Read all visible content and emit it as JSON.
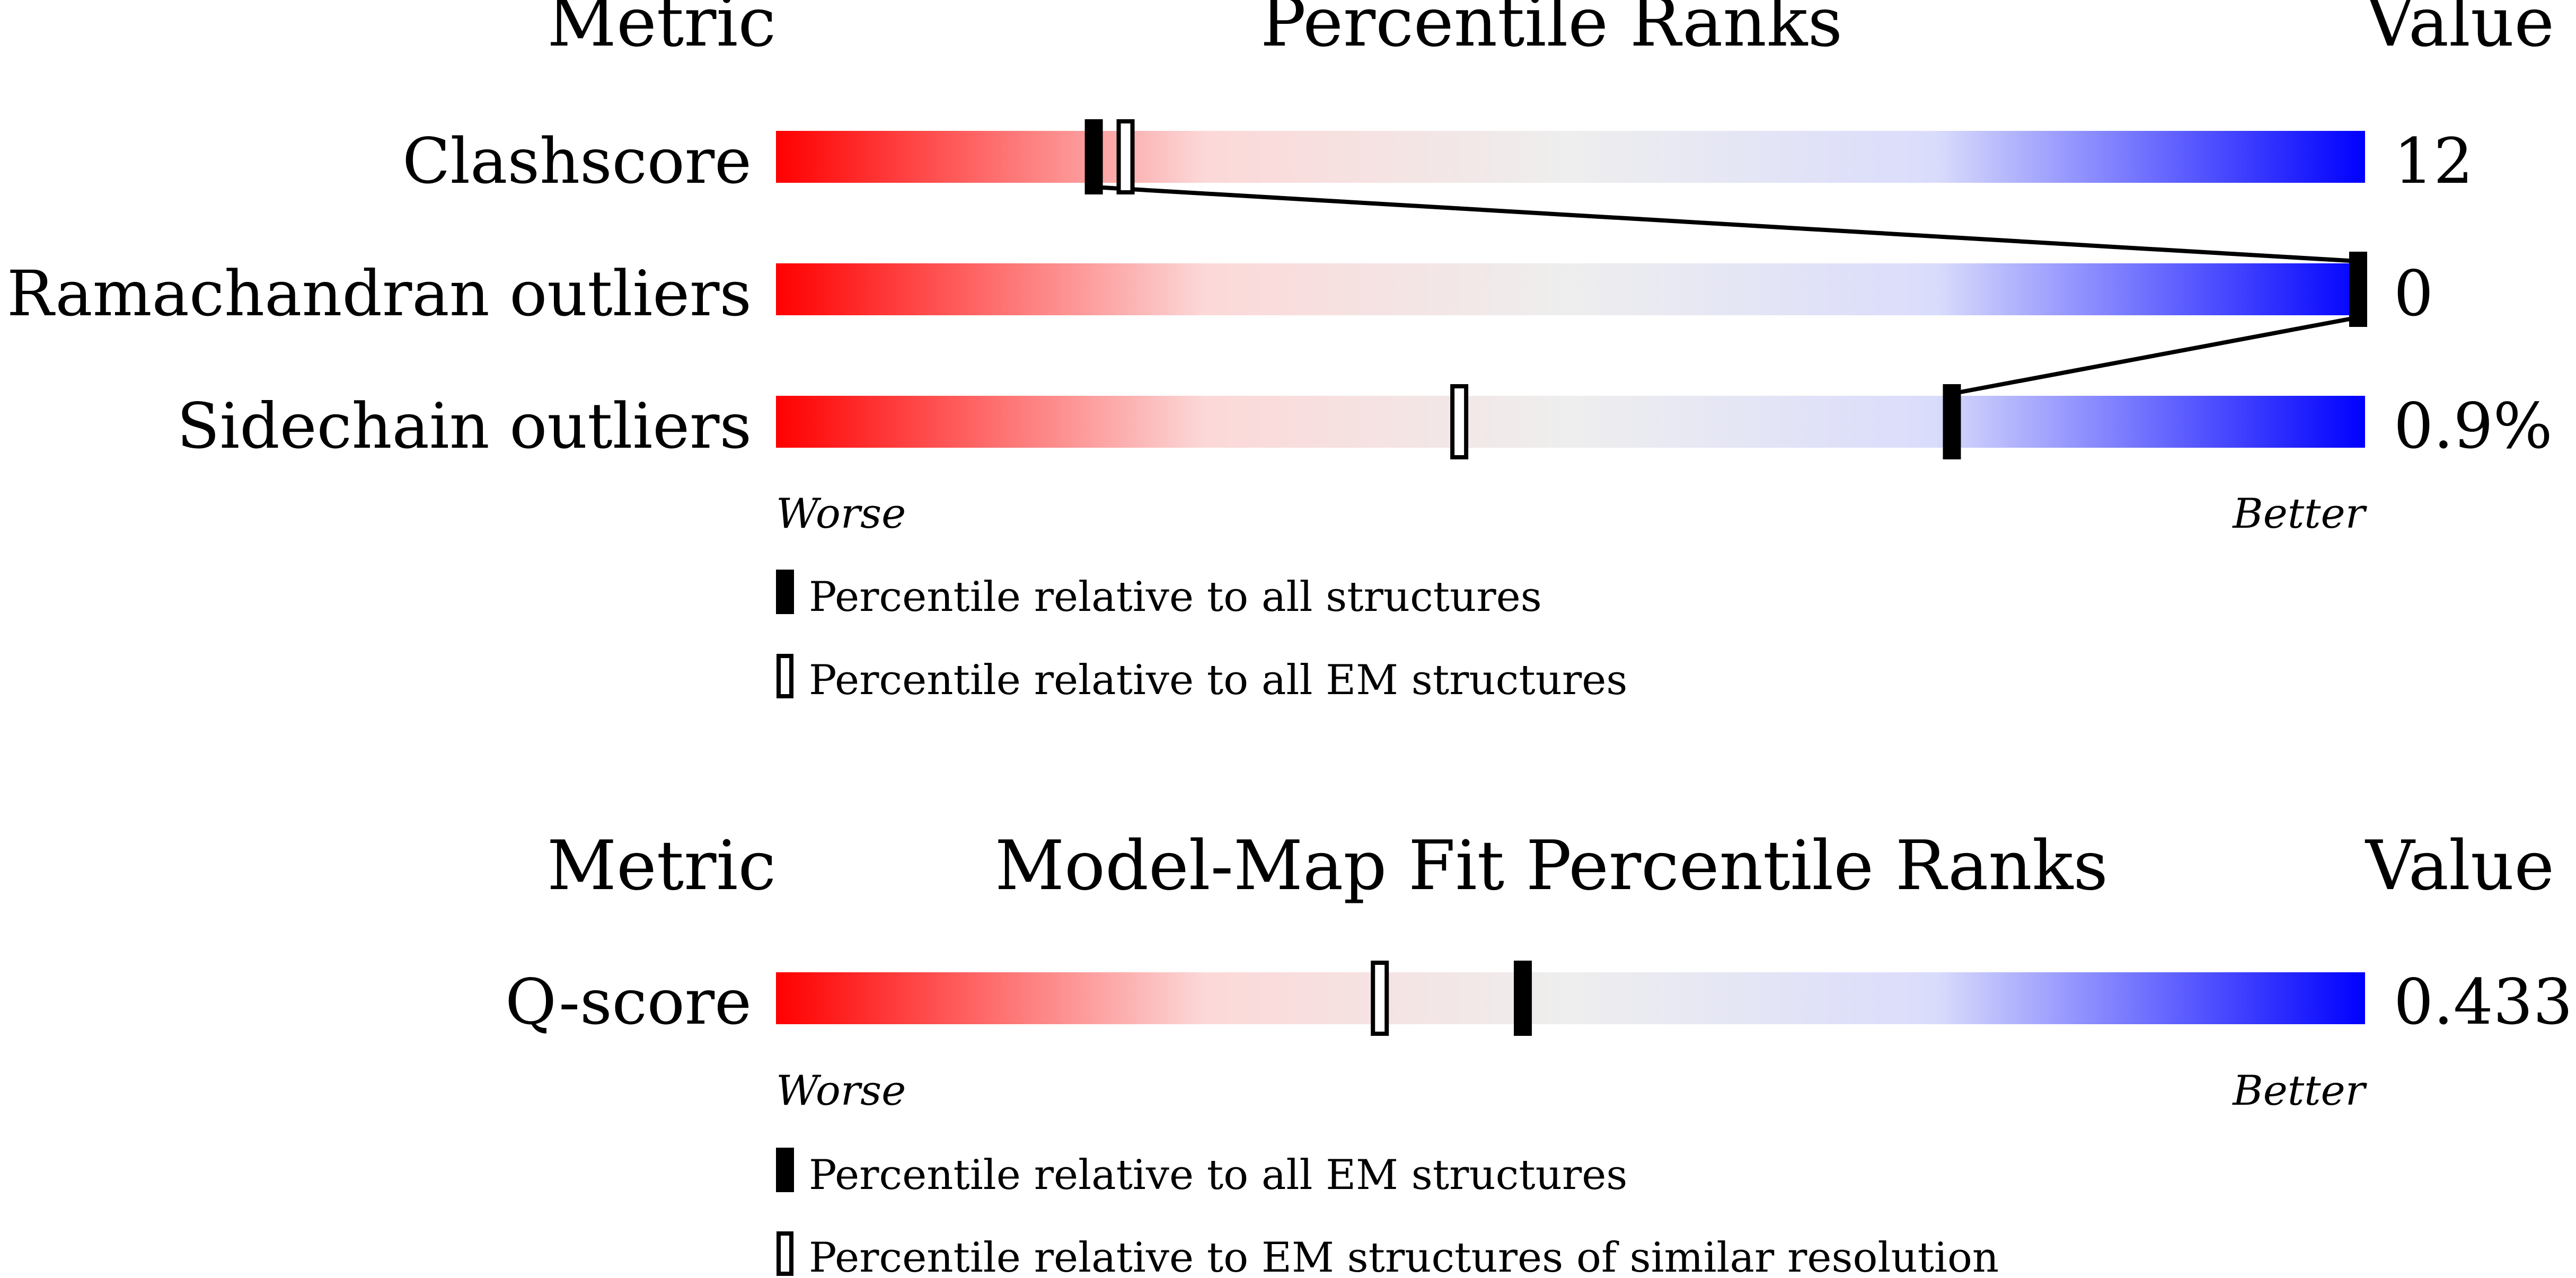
{
  "colors": {
    "worse": "#ff0000",
    "mid": "#eeeeee",
    "light_red": "#fcd8d8",
    "light_blue": "#dadcfc",
    "better": "#0000ff",
    "marker": "#000000"
  },
  "chart_data": [
    {
      "type": "percentile-ranks",
      "title": "Percentile Ranks",
      "col_metric": "Metric",
      "col_value": "Value",
      "axis_left": "Worse",
      "axis_right": "Better",
      "x_range": [
        0,
        100
      ],
      "metrics": [
        {
          "name": "Clashscore",
          "value": "12",
          "percentile_all": 20,
          "percentile_em": 22
        },
        {
          "name": "Ramachandran outliers",
          "value": "0",
          "percentile_all": 100,
          "percentile_em": 100
        },
        {
          "name": "Sidechain outliers",
          "value": "0.9%",
          "percentile_all": 74,
          "percentile_em": 43
        }
      ],
      "legend": [
        {
          "marker": "filled",
          "label": "Percentile relative to all structures"
        },
        {
          "marker": "hollow",
          "label": "Percentile relative to all EM structures"
        }
      ]
    },
    {
      "type": "percentile-ranks",
      "title": "Model-Map Fit Percentile Ranks",
      "col_metric": "Metric",
      "col_value": "Value",
      "axis_left": "Worse",
      "axis_right": "Better",
      "x_range": [
        0,
        100
      ],
      "metrics": [
        {
          "name": "Q-score",
          "value": "0.433",
          "percentile_all": 47,
          "percentile_em": 38
        }
      ],
      "legend": [
        {
          "marker": "filled",
          "label": "Percentile relative to all EM structures"
        },
        {
          "marker": "hollow",
          "label": "Percentile relative to EM structures of similar resolution"
        }
      ]
    }
  ]
}
